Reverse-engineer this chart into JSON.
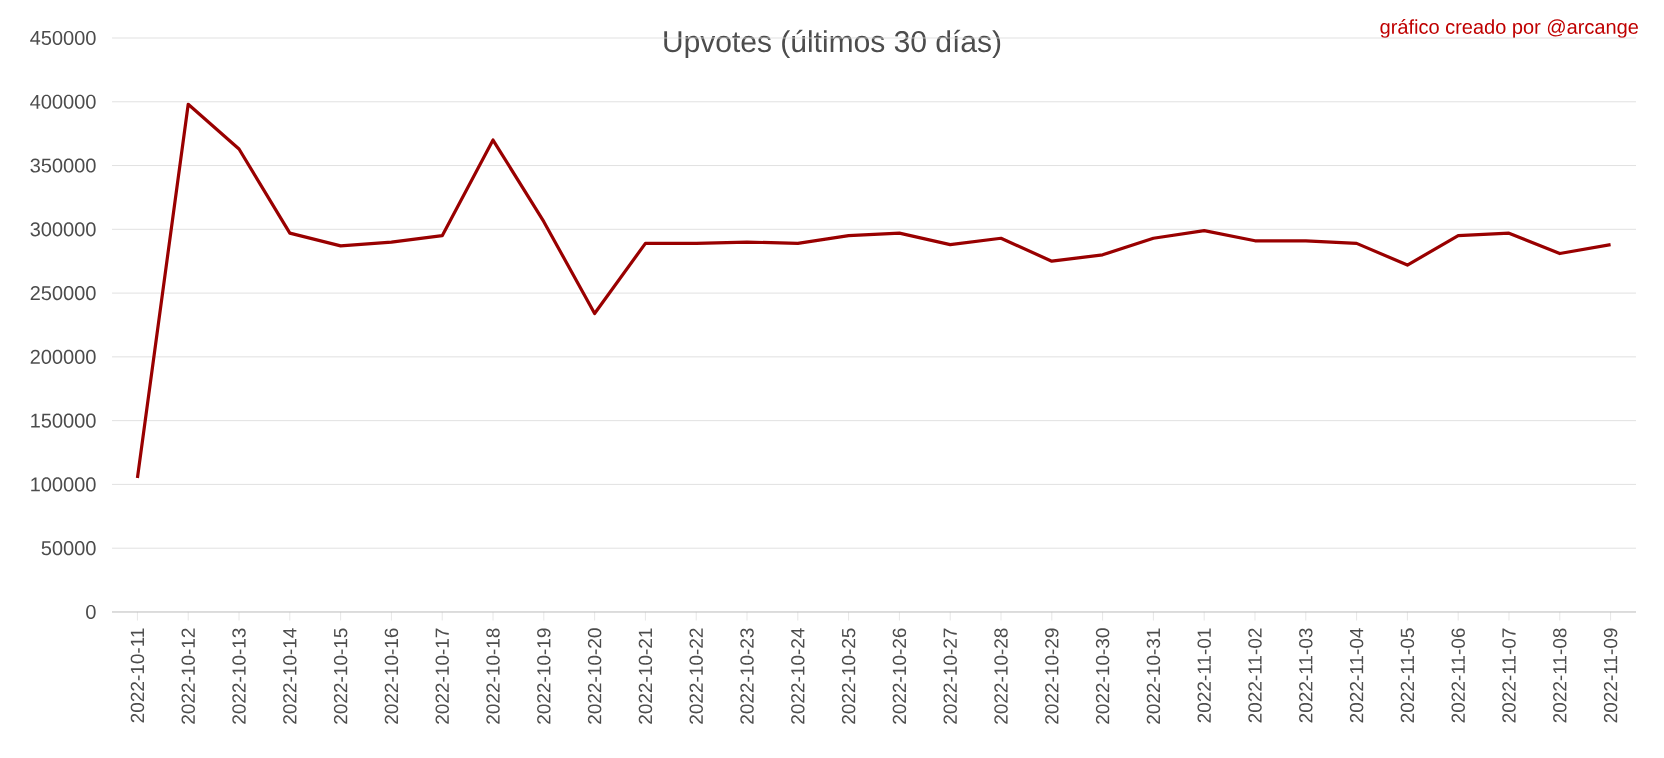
{
  "chart_data": {
    "type": "line",
    "title": "Upvotes (últimos 30 días)",
    "annotations": [
      "gráfico creado por @arcange"
    ],
    "categories": [
      "2022-10-11",
      "2022-10-12",
      "2022-10-13",
      "2022-10-14",
      "2022-10-15",
      "2022-10-16",
      "2022-10-17",
      "2022-10-18",
      "2022-10-19",
      "2022-10-20",
      "2022-10-21",
      "2022-10-22",
      "2022-10-23",
      "2022-10-24",
      "2022-10-25",
      "2022-10-26",
      "2022-10-27",
      "2022-10-28",
      "2022-10-29",
      "2022-10-30",
      "2022-10-31",
      "2022-11-01",
      "2022-11-02",
      "2022-11-03",
      "2022-11-04",
      "2022-11-05",
      "2022-11-06",
      "2022-11-07",
      "2022-11-08",
      "2022-11-09"
    ],
    "series": [
      {
        "color": "#990000",
        "values": [
          105000,
          398000,
          363000,
          297000,
          287000,
          290000,
          295000,
          370000,
          306000,
          234000,
          289000,
          289000,
          290000,
          289000,
          295000,
          297000,
          288000,
          293000,
          275000,
          280000,
          293000,
          299000,
          291000,
          291000,
          289000,
          272000,
          295000,
          297000,
          281000,
          288000
        ]
      }
    ],
    "ylim": [
      0,
      450000
    ],
    "yticks": [
      0,
      50000,
      100000,
      150000,
      200000,
      250000,
      300000,
      350000,
      400000,
      450000
    ],
    "grid": "y",
    "marker": "none",
    "line_style": "solid"
  }
}
